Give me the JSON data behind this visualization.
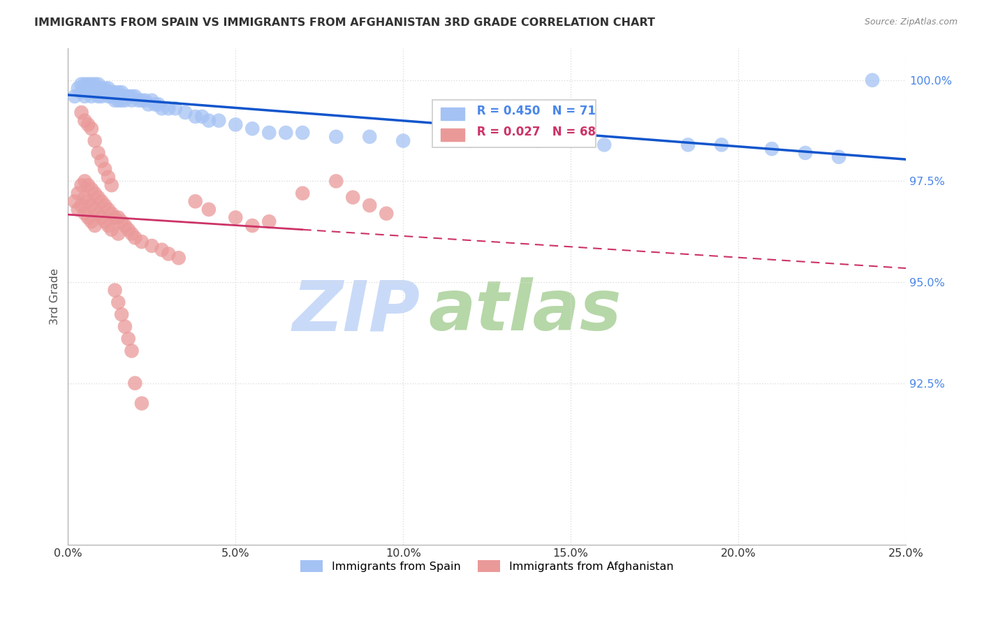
{
  "title": "IMMIGRANTS FROM SPAIN VS IMMIGRANTS FROM AFGHANISTAN 3RD GRADE CORRELATION CHART",
  "source": "Source: ZipAtlas.com",
  "ylabel": "3rd Grade",
  "ytick_vals": [
    0.925,
    0.95,
    0.975,
    1.0
  ],
  "ytick_labels": [
    "92.5%",
    "95.0%",
    "97.5%",
    "100.0%"
  ],
  "xtick_vals": [
    0.0,
    0.05,
    0.1,
    0.15,
    0.2,
    0.25
  ],
  "xtick_labels": [
    "0.0%",
    "5.0%",
    "10.0%",
    "15.0%",
    "20.0%",
    "25.0%"
  ],
  "xlim": [
    0.0,
    0.25
  ],
  "ylim": [
    0.885,
    1.008
  ],
  "legend_r_spain": "R = 0.450",
  "legend_n_spain": "N = 71",
  "legend_r_afghanistan": "R = 0.027",
  "legend_n_afghanistan": "N = 68",
  "color_spain": "#a4c2f4",
  "color_afghanistan": "#ea9999",
  "trendline_spain_color": "#1155cc",
  "trendline_afghanistan_color": "#cc3366",
  "watermark_zip": "ZIP",
  "watermark_atlas": "atlas",
  "watermark_color_zip": "#c9daf8",
  "watermark_color_atlas": "#b6d7a8",
  "legend_box_color": "#ffffff",
  "legend_border_color": "#cccccc",
  "ytick_color": "#4a86e8",
  "background_color": "#ffffff",
  "grid_color": "#dddddd",
  "spain_x": [
    0.002,
    0.003,
    0.004,
    0.004,
    0.005,
    0.005,
    0.005,
    0.006,
    0.006,
    0.007,
    0.007,
    0.007,
    0.008,
    0.008,
    0.008,
    0.009,
    0.009,
    0.009,
    0.01,
    0.01,
    0.01,
    0.011,
    0.011,
    0.012,
    0.012,
    0.013,
    0.013,
    0.014,
    0.014,
    0.015,
    0.015,
    0.016,
    0.016,
    0.017,
    0.017,
    0.018,
    0.019,
    0.019,
    0.02,
    0.021,
    0.022,
    0.023,
    0.024,
    0.025,
    0.026,
    0.027,
    0.028,
    0.03,
    0.032,
    0.035,
    0.038,
    0.04,
    0.042,
    0.045,
    0.05,
    0.055,
    0.06,
    0.065,
    0.07,
    0.08,
    0.09,
    0.1,
    0.12,
    0.14,
    0.16,
    0.185,
    0.195,
    0.21,
    0.22,
    0.23,
    0.24
  ],
  "spain_y": [
    0.996,
    0.998,
    0.999,
    0.997,
    0.999,
    0.998,
    0.996,
    0.999,
    0.998,
    0.999,
    0.998,
    0.996,
    0.999,
    0.998,
    0.997,
    0.999,
    0.997,
    0.996,
    0.998,
    0.997,
    0.996,
    0.998,
    0.997,
    0.998,
    0.996,
    0.997,
    0.996,
    0.997,
    0.995,
    0.997,
    0.995,
    0.997,
    0.995,
    0.996,
    0.995,
    0.996,
    0.996,
    0.995,
    0.996,
    0.995,
    0.995,
    0.995,
    0.994,
    0.995,
    0.994,
    0.994,
    0.993,
    0.993,
    0.993,
    0.992,
    0.991,
    0.991,
    0.99,
    0.99,
    0.989,
    0.988,
    0.987,
    0.987,
    0.987,
    0.986,
    0.986,
    0.985,
    0.985,
    0.985,
    0.984,
    0.984,
    0.984,
    0.983,
    0.982,
    0.981,
    1.0
  ],
  "afghanistan_x": [
    0.002,
    0.003,
    0.003,
    0.004,
    0.004,
    0.005,
    0.005,
    0.005,
    0.006,
    0.006,
    0.006,
    0.007,
    0.007,
    0.007,
    0.008,
    0.008,
    0.008,
    0.009,
    0.009,
    0.01,
    0.01,
    0.011,
    0.011,
    0.012,
    0.012,
    0.013,
    0.013,
    0.014,
    0.015,
    0.015,
    0.016,
    0.017,
    0.018,
    0.019,
    0.02,
    0.022,
    0.025,
    0.028,
    0.03,
    0.033,
    0.038,
    0.042,
    0.05,
    0.055,
    0.06,
    0.07,
    0.08,
    0.085,
    0.09,
    0.095,
    0.004,
    0.005,
    0.006,
    0.007,
    0.008,
    0.009,
    0.01,
    0.011,
    0.012,
    0.013,
    0.014,
    0.015,
    0.016,
    0.017,
    0.018,
    0.019,
    0.02,
    0.022
  ],
  "afghanistan_y": [
    0.97,
    0.972,
    0.968,
    0.974,
    0.969,
    0.975,
    0.971,
    0.967,
    0.974,
    0.97,
    0.966,
    0.973,
    0.969,
    0.965,
    0.972,
    0.968,
    0.964,
    0.971,
    0.967,
    0.97,
    0.966,
    0.969,
    0.965,
    0.968,
    0.964,
    0.967,
    0.963,
    0.966,
    0.966,
    0.962,
    0.965,
    0.964,
    0.963,
    0.962,
    0.961,
    0.96,
    0.959,
    0.958,
    0.957,
    0.956,
    0.97,
    0.968,
    0.966,
    0.964,
    0.965,
    0.972,
    0.975,
    0.971,
    0.969,
    0.967,
    0.992,
    0.99,
    0.989,
    0.988,
    0.985,
    0.982,
    0.98,
    0.978,
    0.976,
    0.974,
    0.948,
    0.945,
    0.942,
    0.939,
    0.936,
    0.933,
    0.925,
    0.92
  ]
}
